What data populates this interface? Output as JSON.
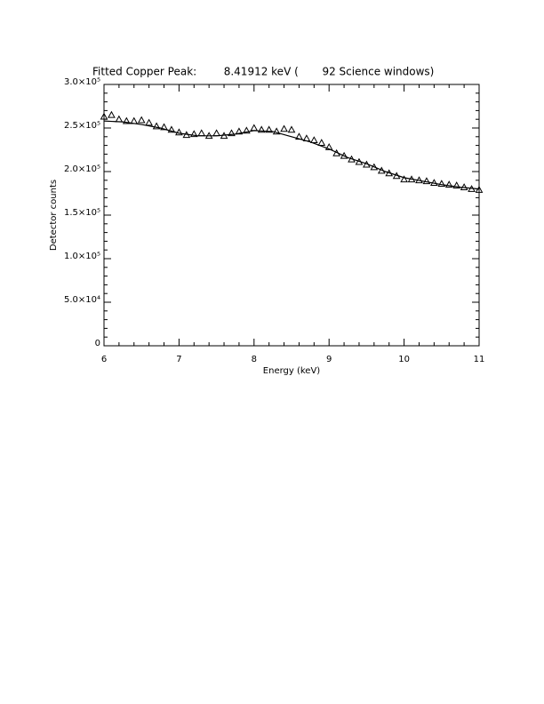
{
  "chart_data": {
    "type": "scatter",
    "title": "Fitted Copper Peak:        8.41912 keV (       92 Science windows)",
    "xlabel": "Energy (keV)",
    "ylabel": "Detector counts",
    "xlim": [
      6,
      11
    ],
    "xticks": [
      6,
      7,
      8,
      9,
      10,
      11
    ],
    "ylim": [
      0,
      300000
    ],
    "yticks": [
      0,
      {
        "value": 50000,
        "label": "5.0×10⁴"
      },
      {
        "value": 100000,
        "label": "1.0×10⁵"
      },
      {
        "value": 150000,
        "label": "1.5×10⁵"
      },
      {
        "value": 200000,
        "label": "2.0×10⁵"
      },
      {
        "value": 250000,
        "label": "2.5×10⁵"
      },
      {
        "value": 300000,
        "label": "3.0×10⁵"
      }
    ],
    "xminor": 5,
    "yminor": 5,
    "series": [
      {
        "marker": "triangle",
        "color": "#000000",
        "x": [
          6.0,
          6.1,
          6.2,
          6.3,
          6.4,
          6.5,
          6.6,
          6.7,
          6.8,
          6.9,
          7.0,
          7.1,
          7.2,
          7.3,
          7.4,
          7.5,
          7.6,
          7.7,
          7.8,
          7.9,
          8.0,
          8.1,
          8.2,
          8.3,
          8.4,
          8.5,
          8.6,
          8.7,
          8.8,
          8.9,
          9.0,
          9.1,
          9.2,
          9.3,
          9.4,
          9.5,
          9.6,
          9.7,
          9.8,
          9.9,
          10.0,
          10.1,
          10.2,
          10.3,
          10.4,
          10.5,
          10.6,
          10.7,
          10.8,
          10.9,
          11.0
        ],
        "values": [
          263000,
          265000,
          260000,
          258000,
          258000,
          259000,
          256000,
          252000,
          251000,
          248000,
          245000,
          242000,
          243000,
          244000,
          241000,
          244000,
          241000,
          244000,
          246000,
          247000,
          250000,
          248000,
          248000,
          246000,
          249000,
          248000,
          240000,
          238000,
          236000,
          233000,
          228000,
          221000,
          218000,
          214000,
          211000,
          208000,
          205000,
          201000,
          198000,
          195000,
          191000,
          191000,
          190000,
          189000,
          187000,
          186000,
          185000,
          184000,
          182000,
          180000,
          179000
        ]
      },
      {
        "marker": "line",
        "color": "#000000",
        "x": [
          6.0,
          6.25,
          6.5,
          6.75,
          7.0,
          7.25,
          7.5,
          7.75,
          8.0,
          8.25,
          8.5,
          8.75,
          9.0,
          9.25,
          9.5,
          9.75,
          10.0,
          10.25,
          10.5,
          10.75,
          11.0
        ],
        "values": [
          258000,
          257000,
          254000,
          250000,
          244000,
          241000,
          241000,
          243000,
          247000,
          246000,
          240000,
          234000,
          226000,
          216000,
          209000,
          200000,
          193000,
          189000,
          185000,
          182000,
          180000
        ]
      }
    ]
  }
}
